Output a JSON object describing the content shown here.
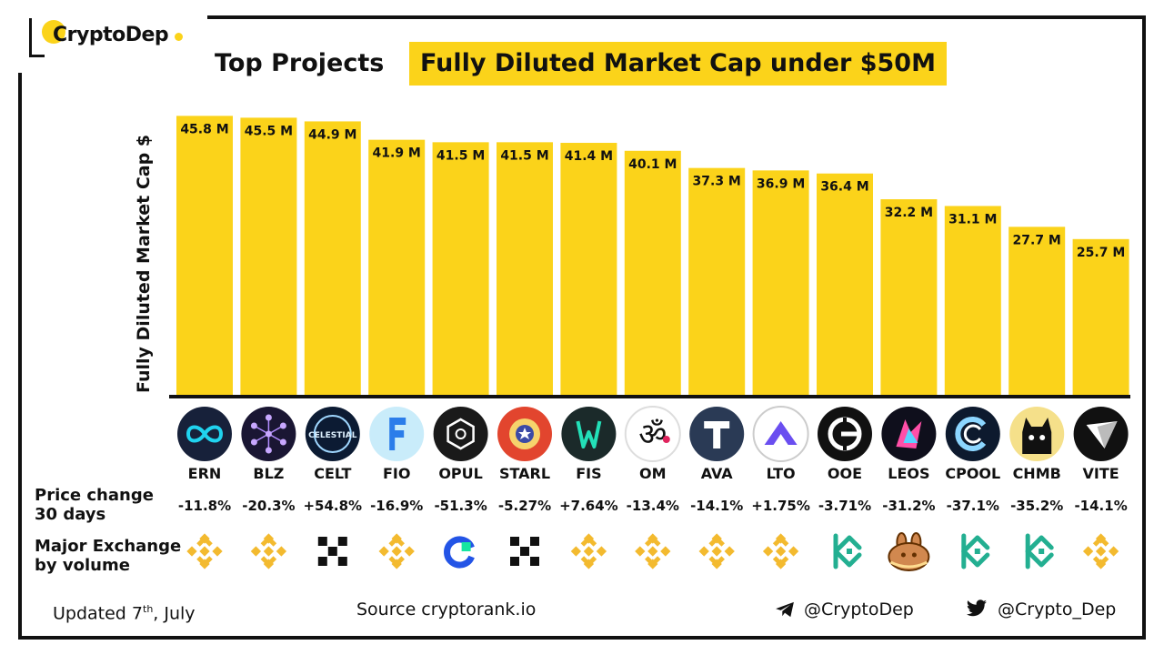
{
  "brand": {
    "name": "CryptoDep"
  },
  "title": "Top Projects",
  "subtitle": "Fully Diluted Market Cap under $50M",
  "labels": {
    "price_change": [
      "Price change",
      "30 days"
    ],
    "exchange": [
      "Major Exchange",
      "by volume"
    ]
  },
  "footer": {
    "updated_prefix": "Updated 7",
    "updated_sup": "th",
    "updated_suffix": ", July",
    "source": "Source  cryptorank.io",
    "telegram": "@CryptoDep",
    "twitter": "@Crypto_Dep"
  },
  "colors": {
    "bar": "#FBD31A",
    "binance": "#F3BA2F",
    "kucoin": "#23AF91",
    "okx": "#111111",
    "gate": "#2354E6"
  },
  "chart_data": {
    "type": "bar",
    "title": "Top Projects Fully Diluted Market Cap under $50M",
    "xlabel": "",
    "ylabel": "Fully Diluted  Market Cap $",
    "unit": "M",
    "ylim": [
      0,
      46.3
    ],
    "categories": [
      "ERN",
      "BLZ",
      "CELT",
      "FIO",
      "OPUL",
      "STARL",
      "FIS",
      "OM",
      "AVA",
      "LTO",
      "OOE",
      "LEOS",
      "CPOOL",
      "CHMB",
      "VITE"
    ],
    "values": [
      45.8,
      45.5,
      44.9,
      41.9,
      41.5,
      41.5,
      41.4,
      40.1,
      37.3,
      36.9,
      36.4,
      32.2,
      31.1,
      27.7,
      25.7
    ],
    "value_labels": [
      "45.8 M",
      "45.5 M",
      "44.9 M",
      "41.9 M",
      "41.5 M",
      "41.5 M",
      "41.4 M",
      "40.1 M",
      "37.3 M",
      "36.9 M",
      "36.4 M",
      "32.2 M",
      "31.1 M",
      "27.7 M",
      "25.7 M"
    ],
    "price_change_30d": [
      "-11.8%",
      "-20.3%",
      "+54.8%",
      "-16.9%",
      "-51.3%",
      "-5.27%",
      "+7.64%",
      "-13.4%",
      "-14.1%",
      "+1.75%",
      "-3.71%",
      "-31.2%",
      "-37.1%",
      "-35.2%",
      "-14.1%"
    ],
    "exchange_icons": [
      "binance-icon",
      "binance-icon",
      "okx-icon",
      "binance-icon",
      "gate-icon",
      "okx-icon",
      "binance-icon",
      "binance-icon",
      "binance-icon",
      "binance-icon",
      "kucoin-icon",
      "pancakeswap-icon",
      "kucoin-icon",
      "kucoin-icon",
      "binance-icon"
    ],
    "coin_icons": [
      "ern-icon",
      "blz-icon",
      "celt-icon",
      "fio-icon",
      "opul-icon",
      "starl-icon",
      "fis-icon",
      "om-icon",
      "ava-icon",
      "lto-icon",
      "ooe-icon",
      "leos-icon",
      "cpool-icon",
      "chmb-icon",
      "vite-icon"
    ],
    "coin_icon_text": [
      "",
      "",
      "CELESTIAL",
      "",
      "",
      "",
      "",
      "",
      "",
      "",
      "",
      "",
      "",
      "",
      ""
    ]
  }
}
